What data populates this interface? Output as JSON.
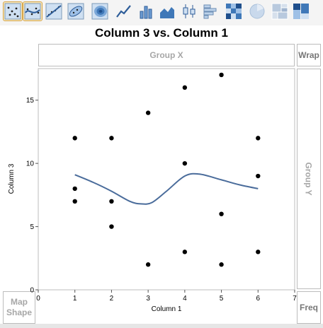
{
  "toolbar": {
    "tools": [
      {
        "name": "points-icon",
        "active": true
      },
      {
        "name": "smoother-icon",
        "active": true
      },
      {
        "name": "line-of-fit-icon",
        "active": false
      },
      {
        "name": "ellipse-icon",
        "active": false
      },
      {
        "name": "contour-icon",
        "active": false
      },
      {
        "name": "line-icon",
        "active": false
      },
      {
        "name": "bar-icon",
        "active": false
      },
      {
        "name": "area-icon",
        "active": false
      },
      {
        "name": "box-plot-icon",
        "active": false
      },
      {
        "name": "histogram-icon",
        "active": false
      },
      {
        "name": "heatmap-icon",
        "active": false
      },
      {
        "name": "pie-icon",
        "active": false
      },
      {
        "name": "treemap-icon",
        "active": false
      },
      {
        "name": "mosaic-icon",
        "active": false
      }
    ]
  },
  "graph": {
    "title": "Column 3 vs. Column 1"
  },
  "zones": {
    "group_x": "Group X",
    "wrap": "Wrap",
    "group_y": "Group Y",
    "map_shape": "Map\nShape",
    "freq": "Freq"
  },
  "colors": {
    "point": "#000000",
    "smoother": "#4a6c9b",
    "zone_text": "#a7a7a7",
    "border": "#bcbcbc"
  },
  "chart_data": {
    "type": "scatter",
    "title": "Column 3 vs. Column 1",
    "xlabel": "Column 1",
    "ylabel": "Column 3",
    "xlim": [
      0,
      7
    ],
    "ylim": [
      0,
      17.5
    ],
    "x_ticks": [
      0,
      1,
      2,
      3,
      4,
      5,
      6,
      7
    ],
    "y_ticks": [
      0,
      5,
      10,
      15
    ],
    "points": [
      {
        "x": 1,
        "y": 12
      },
      {
        "x": 1,
        "y": 8
      },
      {
        "x": 1,
        "y": 7
      },
      {
        "x": 2,
        "y": 12
      },
      {
        "x": 2,
        "y": 7
      },
      {
        "x": 2,
        "y": 5
      },
      {
        "x": 3,
        "y": 14
      },
      {
        "x": 3,
        "y": 2
      },
      {
        "x": 4,
        "y": 16
      },
      {
        "x": 4,
        "y": 10
      },
      {
        "x": 4,
        "y": 3
      },
      {
        "x": 5,
        "y": 17
      },
      {
        "x": 5,
        "y": 6
      },
      {
        "x": 5,
        "y": 2
      },
      {
        "x": 6,
        "y": 12
      },
      {
        "x": 6,
        "y": 9
      },
      {
        "x": 6,
        "y": 3
      }
    ],
    "smoother": [
      {
        "x": 1,
        "y": 9.1
      },
      {
        "x": 1.5,
        "y": 8.5
      },
      {
        "x": 2,
        "y": 7.8
      },
      {
        "x": 2.5,
        "y": 7.0
      },
      {
        "x": 2.8,
        "y": 6.8
      },
      {
        "x": 3.1,
        "y": 6.9
      },
      {
        "x": 3.5,
        "y": 7.8
      },
      {
        "x": 4,
        "y": 9.0
      },
      {
        "x": 4.4,
        "y": 9.15
      },
      {
        "x": 5,
        "y": 8.7
      },
      {
        "x": 5.5,
        "y": 8.3
      },
      {
        "x": 6,
        "y": 8.0
      }
    ]
  }
}
